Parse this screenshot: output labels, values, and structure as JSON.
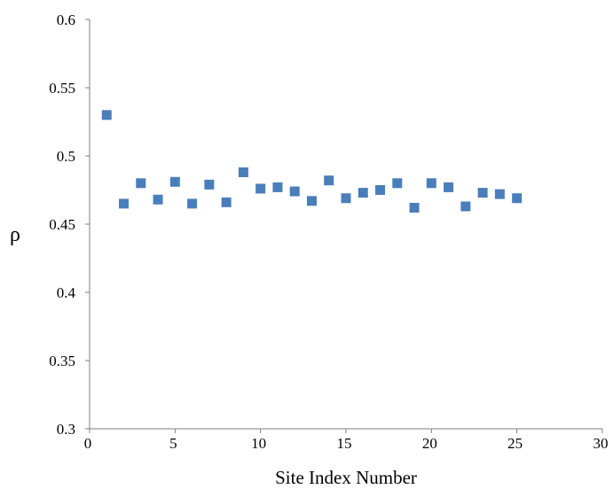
{
  "chart_data": {
    "type": "scatter",
    "xlabel": "Site Index Number",
    "ylabel": "ρ",
    "xlim": [
      0,
      30
    ],
    "ylim": [
      0.3,
      0.6
    ],
    "xticks": [
      "0",
      "5",
      "10",
      "15",
      "20",
      "25",
      "30"
    ],
    "yticks": [
      "0.3",
      "0.35",
      "0.4",
      "0.45",
      "0.5",
      "0.55",
      "0.6"
    ],
    "grid": false,
    "marker": "square",
    "marker_color": "#4a7ebb",
    "series": [
      {
        "x": [
          1,
          2,
          3,
          4,
          5,
          6,
          7,
          8,
          9,
          10,
          11,
          12,
          13,
          14,
          15,
          16,
          17,
          18,
          19,
          20,
          21,
          22,
          23,
          24,
          25
        ],
        "y": [
          0.53,
          0.465,
          0.48,
          0.468,
          0.481,
          0.465,
          0.479,
          0.466,
          0.488,
          0.476,
          0.477,
          0.474,
          0.467,
          0.482,
          0.469,
          0.473,
          0.475,
          0.48,
          0.462,
          0.48,
          0.477,
          0.463,
          0.473,
          0.472,
          0.469
        ]
      }
    ]
  }
}
